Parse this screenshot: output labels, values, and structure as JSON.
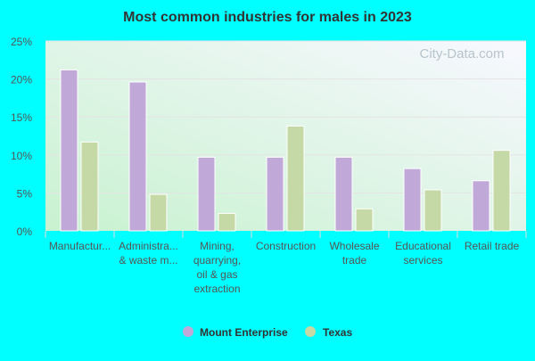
{
  "chart_data": {
    "type": "bar",
    "title": "Most common industries for males in 2023",
    "categories": [
      [
        "Manufactur..."
      ],
      [
        "Administra...",
        "& waste m..."
      ],
      [
        "Mining,",
        "quarrying,",
        "oil & gas",
        "extraction"
      ],
      [
        "Construction"
      ],
      [
        "Wholesale",
        "trade"
      ],
      [
        "Educational",
        "services"
      ],
      [
        "Retail trade"
      ]
    ],
    "series": [
      {
        "name": "Mount Enterprise",
        "color": "#c0a8d8",
        "values": [
          21.2,
          19.6,
          9.7,
          9.7,
          9.7,
          8.2,
          6.6
        ]
      },
      {
        "name": "Texas",
        "color": "#c4d9a6",
        "values": [
          11.7,
          4.8,
          2.3,
          13.8,
          2.9,
          5.4,
          10.6
        ]
      }
    ],
    "yticks": [
      "0%",
      "5%",
      "10%",
      "15%",
      "20%",
      "25%"
    ],
    "ylim": [
      0,
      25
    ],
    "grid": true,
    "legend_placement": "bottom",
    "watermark": "City-Data.com"
  }
}
